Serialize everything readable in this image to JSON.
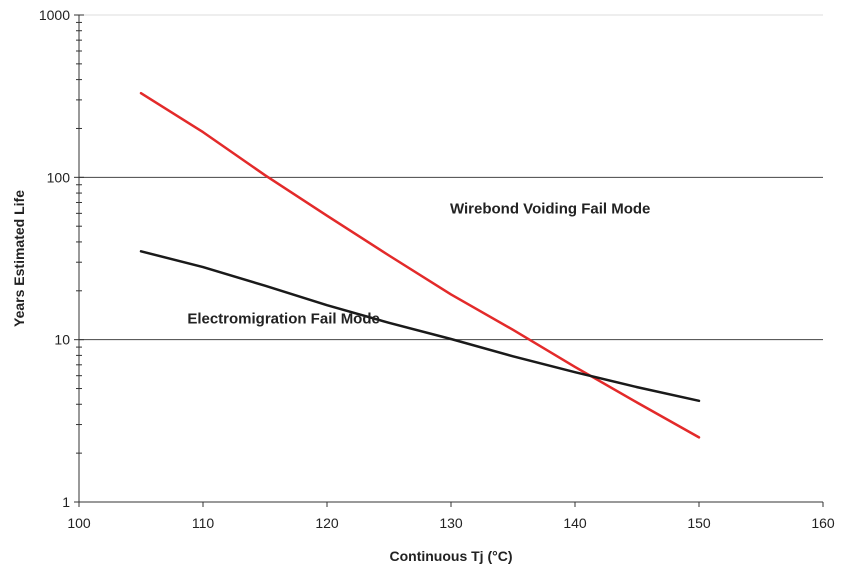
{
  "chart_data": {
    "type": "line",
    "title": "",
    "xlabel": "Continuous Tj (°C)",
    "ylabel": "Years Estimated Life",
    "xlim": [
      100,
      160
    ],
    "ylim": [
      1,
      1000
    ],
    "yscale": "log",
    "x_ticks": [
      "100",
      "110",
      "120",
      "130",
      "140",
      "150",
      "160"
    ],
    "y_ticks": [
      "1",
      "10",
      "100",
      "1000"
    ],
    "grid": "horizontal major gridlines at 10 and 100",
    "series": [
      {
        "color": "#e32a2a",
        "x": [
          105,
          110,
          115,
          120,
          125,
          130,
          135,
          140,
          145,
          150
        ],
        "y": [
          330,
          190,
          103,
          58,
          33,
          19,
          11.5,
          6.8,
          4.1,
          2.5
        ]
      },
      {
        "color": "#1a1a1a",
        "x": [
          105,
          110,
          115,
          120,
          125,
          130,
          135,
          140,
          145,
          150
        ],
        "y": [
          35,
          28,
          21.5,
          16.3,
          12.7,
          10.1,
          7.9,
          6.3,
          5.1,
          4.2
        ]
      }
    ],
    "annotations": [
      {
        "text": "Wirebond Voiding Fail Mode",
        "x": 138,
        "y": 60
      },
      {
        "text": "Electromigration Fail Mode",
        "x": 116.5,
        "y": 12.6
      }
    ]
  }
}
